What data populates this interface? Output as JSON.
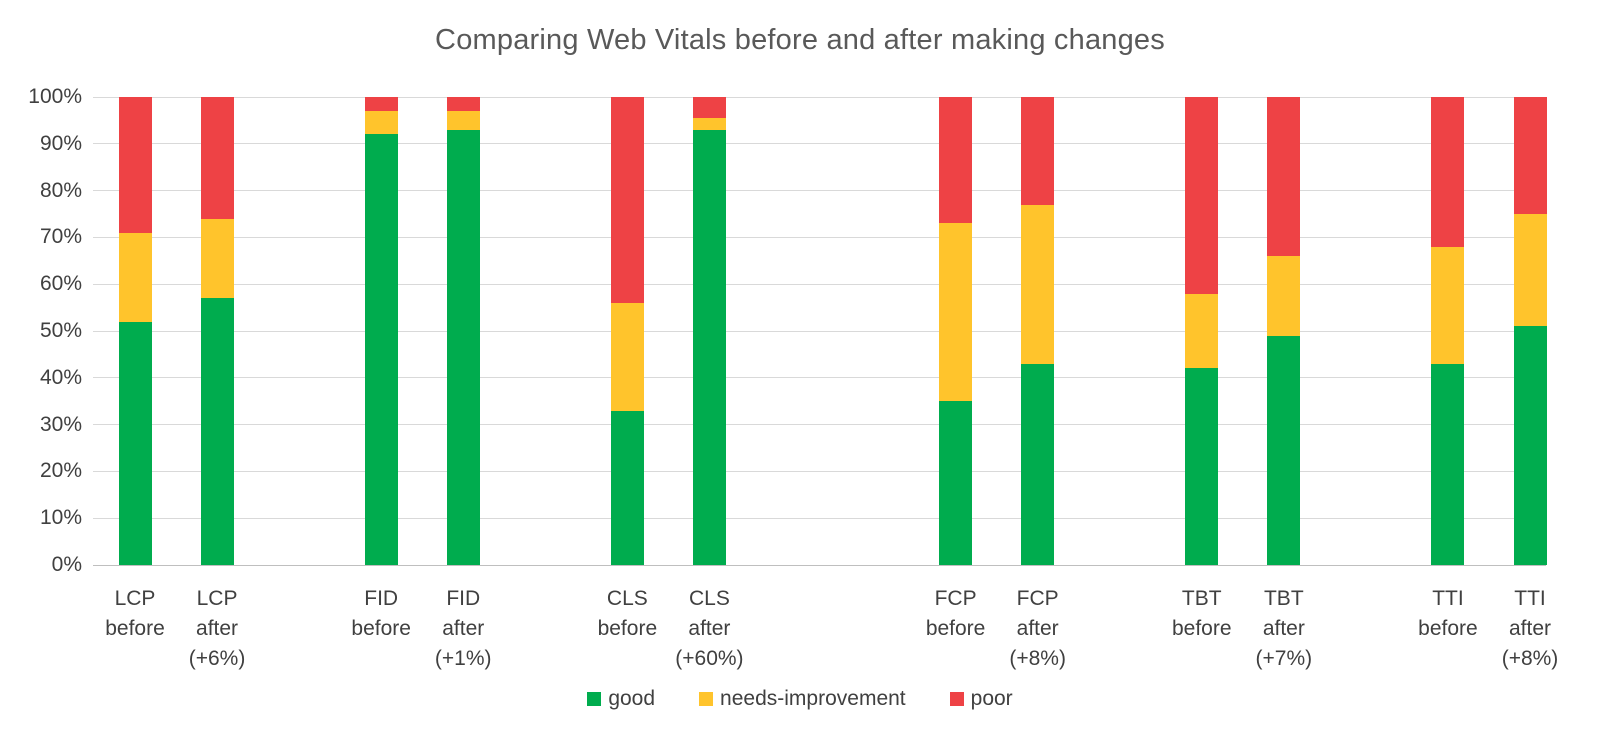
{
  "chart_data": {
    "type": "bar",
    "stacked": true,
    "percent_stacked": true,
    "title": "Comparing Web Vitals before and after making changes",
    "xlabel": "",
    "ylabel": "",
    "ylim": [
      0,
      100
    ],
    "y_ticks": [
      "0%",
      "10%",
      "20%",
      "30%",
      "40%",
      "50%",
      "60%",
      "70%",
      "80%",
      "90%",
      "100%"
    ],
    "grid": "horizontal",
    "legend_position": "bottom-center",
    "series": [
      {
        "name": "good",
        "color": "#00AC4E"
      },
      {
        "name": "needs-improvement",
        "color": "#FFC42C"
      },
      {
        "name": "poor",
        "color": "#EE4245"
      }
    ],
    "bars": [
      {
        "id": "lcp-before",
        "label_lines": [
          "LCP",
          "before"
        ],
        "values": [
          52,
          19,
          29
        ],
        "slot": 0
      },
      {
        "id": "lcp-after",
        "label_lines": [
          "LCP",
          "after",
          "(+6%)"
        ],
        "values": [
          57,
          17,
          26
        ],
        "slot": 1
      },
      {
        "id": "fid-before",
        "label_lines": [
          "FID",
          "before"
        ],
        "values": [
          92,
          5,
          3
        ],
        "slot": 3
      },
      {
        "id": "fid-after",
        "label_lines": [
          "FID",
          "after",
          "(+1%)"
        ],
        "values": [
          93,
          4,
          3
        ],
        "slot": 4
      },
      {
        "id": "cls-before",
        "label_lines": [
          "CLS",
          "before"
        ],
        "values": [
          33,
          23,
          44
        ],
        "slot": 6
      },
      {
        "id": "cls-after",
        "label_lines": [
          "CLS",
          "after",
          "(+60%)"
        ],
        "values": [
          93,
          2.5,
          4.5
        ],
        "slot": 7
      },
      {
        "id": "fcp-before",
        "label_lines": [
          "FCP",
          "before"
        ],
        "values": [
          35,
          38,
          27
        ],
        "slot": 10
      },
      {
        "id": "fcp-after",
        "label_lines": [
          "FCP",
          "after",
          "(+8%)"
        ],
        "values": [
          43,
          34,
          23
        ],
        "slot": 11
      },
      {
        "id": "tbt-before",
        "label_lines": [
          "TBT",
          "before"
        ],
        "values": [
          42,
          16,
          42
        ],
        "slot": 13
      },
      {
        "id": "tbt-after",
        "label_lines": [
          "TBT",
          "after",
          "(+7%)"
        ],
        "values": [
          49,
          17,
          34
        ],
        "slot": 14
      },
      {
        "id": "tti-before",
        "label_lines": [
          "TTI",
          "before"
        ],
        "values": [
          43,
          25,
          32
        ],
        "slot": 16
      },
      {
        "id": "tti-after",
        "label_lines": [
          "TTI",
          "after",
          "(+8%)"
        ],
        "values": [
          51,
          24,
          25
        ],
        "slot": 17
      }
    ],
    "slot_count": 18
  }
}
